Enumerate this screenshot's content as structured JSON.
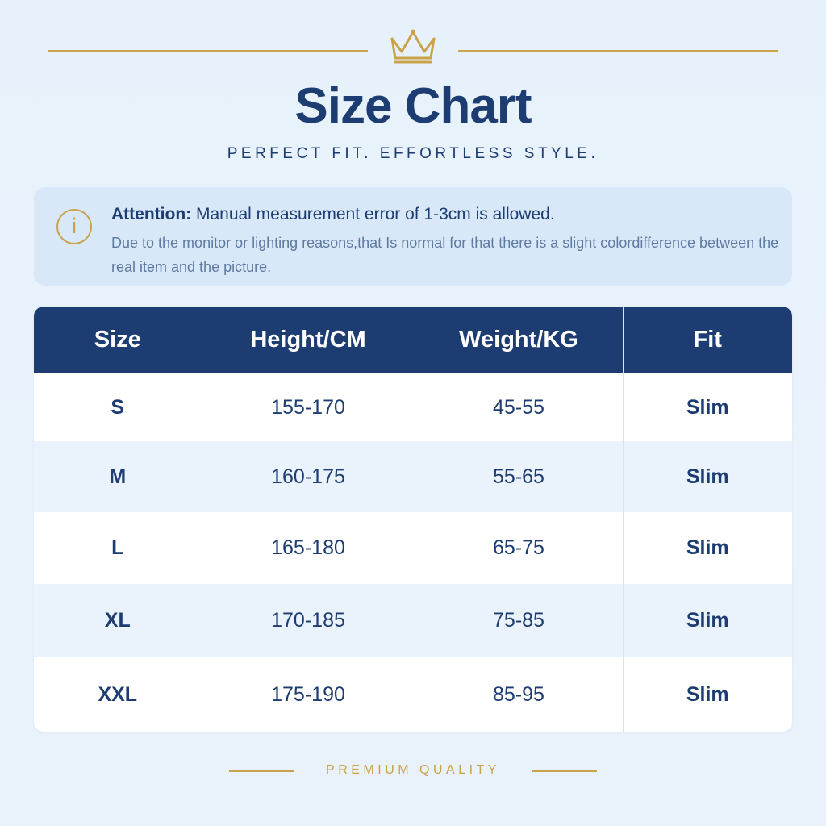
{
  "header": {
    "title": "Size Chart",
    "subtitle": "PERFECT FIT. EFFORTLESS STYLE."
  },
  "notice": {
    "icon": "info-icon",
    "icon_glyph": "i",
    "label": "Attention:",
    "message": " Manual measurement error of 1-3cm is allowed.",
    "details": "Due to the monitor or lighting reasons,that Is normal for that there is a slight colordifference between the real item and the picture."
  },
  "table": {
    "headers": [
      "Size",
      "Height/CM",
      "Weight/KG",
      "Fit"
    ],
    "rows": [
      [
        "S",
        "155-170",
        "45-55",
        "Slim"
      ],
      [
        "M",
        "160-175",
        "55-65",
        "Slim"
      ],
      [
        "L",
        "165-180",
        "65-75",
        "Slim"
      ],
      [
        "XL",
        "170-185",
        "75-85",
        "Slim"
      ],
      [
        "XXL",
        "175-190",
        "85-95",
        "Slim"
      ]
    ]
  },
  "footer": {
    "text": "PREMIUM QUALITY"
  },
  "colors": {
    "navy": "#1c3c72",
    "gold": "#c9a24a",
    "background": "#e6f1fb"
  }
}
